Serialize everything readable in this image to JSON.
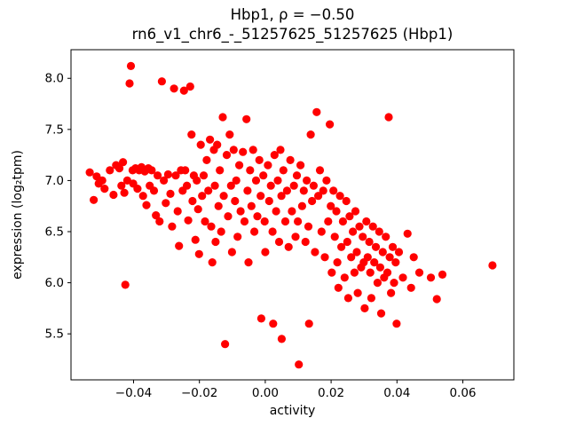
{
  "figure": {
    "title_line1": "Hbp1, ρ = −0.50",
    "title_line2": "rn6_v1_chr6_-_51257625_51257625 (Hbp1)",
    "xlabel": "activity",
    "ylabel": "expression (log₂tpm)"
  },
  "chart_data": {
    "type": "scatter",
    "title": "Hbp1, ρ = −0.50\nrn6_v1_chr6_-_51257625_51257625 (Hbp1)",
    "xlabel": "activity",
    "ylabel": "expression (log2 tpm)",
    "marker_color": "#ff0000",
    "correlation_rho": -0.5,
    "grid": false,
    "xlim": [
      -0.059,
      0.0755
    ],
    "ylim": [
      5.05,
      8.28
    ],
    "xticks": [
      -0.04,
      -0.02,
      0.0,
      0.02,
      0.04,
      0.06
    ],
    "xtick_labels": [
      "−0.04",
      "−0.02",
      "0.00",
      "0.02",
      "0.04",
      "0.06"
    ],
    "yticks": [
      5.5,
      6.0,
      6.5,
      7.0,
      7.5,
      8.0
    ],
    "ytick_labels": [
      "5.5",
      "6.0",
      "6.5",
      "7.0",
      "7.5",
      "8.0"
    ],
    "points": [
      [
        -0.0533,
        7.08
      ],
      [
        -0.0521,
        6.81
      ],
      [
        -0.0512,
        7.04
      ],
      [
        -0.0506,
        6.97
      ],
      [
        -0.0495,
        7.0
      ],
      [
        -0.0488,
        6.92
      ],
      [
        -0.0472,
        7.1
      ],
      [
        -0.0461,
        6.86
      ],
      [
        -0.0453,
        7.15
      ],
      [
        -0.0443,
        7.12
      ],
      [
        -0.0437,
        6.95
      ],
      [
        -0.0432,
        7.18
      ],
      [
        -0.0428,
        6.88
      ],
      [
        -0.0425,
        5.98
      ],
      [
        -0.0419,
        7.0
      ],
      [
        -0.0412,
        7.95
      ],
      [
        -0.0408,
        8.12
      ],
      [
        -0.0403,
        7.1
      ],
      [
        -0.0401,
        6.97
      ],
      [
        -0.0394,
        7.12
      ],
      [
        -0.0388,
        6.92
      ],
      [
        -0.0383,
        7.1
      ],
      [
        -0.0376,
        7.13
      ],
      [
        -0.0371,
        6.85
      ],
      [
        -0.0366,
        7.09
      ],
      [
        -0.0361,
        6.76
      ],
      [
        -0.0355,
        7.12
      ],
      [
        -0.0351,
        6.95
      ],
      [
        -0.0345,
        7.1
      ],
      [
        -0.0338,
        6.9
      ],
      [
        -0.0332,
        6.66
      ],
      [
        -0.0327,
        7.05
      ],
      [
        -0.0321,
        6.6
      ],
      [
        -0.0314,
        7.97
      ],
      [
        -0.0308,
        7.0
      ],
      [
        -0.0302,
        6.78
      ],
      [
        -0.0295,
        7.06
      ],
      [
        -0.0288,
        6.87
      ],
      [
        -0.0283,
        6.55
      ],
      [
        -0.0277,
        7.9
      ],
      [
        -0.0272,
        7.05
      ],
      [
        -0.0266,
        6.7
      ],
      [
        -0.0262,
        6.36
      ],
      [
        -0.0256,
        7.1
      ],
      [
        -0.0251,
        6.9
      ],
      [
        -0.0247,
        7.88
      ],
      [
        -0.0243,
        7.1
      ],
      [
        -0.0238,
        6.95
      ],
      [
        -0.0234,
        6.61
      ],
      [
        -0.0228,
        7.92
      ],
      [
        -0.0224,
        7.45
      ],
      [
        -0.0221,
        6.8
      ],
      [
        -0.0217,
        7.05
      ],
      [
        -0.0212,
        6.42
      ],
      [
        -0.0208,
        7.0
      ],
      [
        -0.0204,
        6.72
      ],
      [
        -0.0201,
        6.28
      ],
      [
        -0.0196,
        7.35
      ],
      [
        -0.0192,
        6.85
      ],
      [
        -0.0187,
        7.05
      ],
      [
        -0.0183,
        6.6
      ],
      [
        -0.0178,
        7.2
      ],
      [
        -0.0173,
        6.9
      ],
      [
        -0.0168,
        7.4
      ],
      [
        -0.0164,
        6.55
      ],
      [
        -0.0161,
        6.2
      ],
      [
        -0.0156,
        7.3
      ],
      [
        -0.0153,
        6.95
      ],
      [
        -0.0151,
        6.4
      ],
      [
        -0.0146,
        7.35
      ],
      [
        -0.0142,
        6.75
      ],
      [
        -0.0138,
        7.1
      ],
      [
        -0.0134,
        6.5
      ],
      [
        -0.0129,
        7.62
      ],
      [
        -0.0126,
        6.85
      ],
      [
        -0.0122,
        5.4
      ],
      [
        -0.0117,
        7.25
      ],
      [
        -0.0113,
        6.65
      ],
      [
        -0.0108,
        7.45
      ],
      [
        -0.0104,
        6.95
      ],
      [
        -0.0101,
        6.3
      ],
      [
        -0.0096,
        7.3
      ],
      [
        -0.0092,
        6.8
      ],
      [
        -0.0088,
        7.0
      ],
      [
        -0.0084,
        6.45
      ],
      [
        -0.0079,
        7.15
      ],
      [
        -0.0075,
        6.7
      ],
      [
        -0.0068,
        7.28
      ],
      [
        -0.0063,
        6.6
      ],
      [
        -0.0057,
        7.6
      ],
      [
        -0.0054,
        6.9
      ],
      [
        -0.0051,
        6.2
      ],
      [
        -0.0046,
        7.1
      ],
      [
        -0.0042,
        6.75
      ],
      [
        -0.0037,
        7.3
      ],
      [
        -0.0033,
        6.5
      ],
      [
        -0.0028,
        7.0
      ],
      [
        -0.0024,
        6.65
      ],
      [
        -0.0018,
        7.2
      ],
      [
        -0.0014,
        6.85
      ],
      [
        -0.0012,
        5.65
      ],
      [
        -0.0006,
        7.05
      ],
      [
        -0.0002,
        6.6
      ],
      [
        0.0,
        6.3
      ],
      [
        0.0008,
        7.15
      ],
      [
        0.0012,
        6.8
      ],
      [
        0.0017,
        6.95
      ],
      [
        0.0022,
        6.5
      ],
      [
        0.0024,
        5.6
      ],
      [
        0.0028,
        7.25
      ],
      [
        0.0033,
        6.7
      ],
      [
        0.0038,
        7.0
      ],
      [
        0.0042,
        6.4
      ],
      [
        0.0046,
        7.3
      ],
      [
        0.0049,
        6.85
      ],
      [
        0.005,
        5.45
      ],
      [
        0.0055,
        7.1
      ],
      [
        0.0061,
        6.6
      ],
      [
        0.0066,
        6.9
      ],
      [
        0.0071,
        6.35
      ],
      [
        0.0076,
        7.2
      ],
      [
        0.0081,
        6.7
      ],
      [
        0.0087,
        6.95
      ],
      [
        0.0092,
        6.45
      ],
      [
        0.0096,
        7.05
      ],
      [
        0.0099,
        6.6
      ],
      [
        0.0102,
        5.2
      ],
      [
        0.0107,
        7.15
      ],
      [
        0.0112,
        6.75
      ],
      [
        0.0117,
        6.9
      ],
      [
        0.0122,
        6.4
      ],
      [
        0.0126,
        7.0
      ],
      [
        0.0131,
        6.55
      ],
      [
        0.0133,
        5.6
      ],
      [
        0.0138,
        7.45
      ],
      [
        0.0142,
        6.8
      ],
      [
        0.0147,
        6.95
      ],
      [
        0.0151,
        6.3
      ],
      [
        0.0156,
        7.67
      ],
      [
        0.0161,
        6.85
      ],
      [
        0.0166,
        7.1
      ],
      [
        0.0171,
        6.5
      ],
      [
        0.0176,
        6.9
      ],
      [
        0.0181,
        6.25
      ],
      [
        0.0186,
        7.0
      ],
      [
        0.0191,
        6.6
      ],
      [
        0.0196,
        7.55
      ],
      [
        0.0199,
        6.75
      ],
      [
        0.0202,
        6.1
      ],
      [
        0.0207,
        6.9
      ],
      [
        0.0211,
        6.45
      ],
      [
        0.0216,
        6.7
      ],
      [
        0.0219,
        6.2
      ],
      [
        0.0222,
        5.95
      ],
      [
        0.0227,
        6.85
      ],
      [
        0.0231,
        6.35
      ],
      [
        0.0236,
        6.6
      ],
      [
        0.0241,
        6.05
      ],
      [
        0.0246,
        6.8
      ],
      [
        0.0249,
        6.4
      ],
      [
        0.0252,
        5.85
      ],
      [
        0.0256,
        6.65
      ],
      [
        0.0261,
        6.25
      ],
      [
        0.0266,
        6.5
      ],
      [
        0.0271,
        6.1
      ],
      [
        0.0274,
        6.7
      ],
      [
        0.0278,
        6.3
      ],
      [
        0.0281,
        5.9
      ],
      [
        0.0286,
        6.55
      ],
      [
        0.0291,
        6.15
      ],
      [
        0.0296,
        6.45
      ],
      [
        0.0299,
        6.2
      ],
      [
        0.0302,
        5.75
      ],
      [
        0.0307,
        6.6
      ],
      [
        0.0311,
        6.25
      ],
      [
        0.0316,
        6.4
      ],
      [
        0.0319,
        6.1
      ],
      [
        0.0322,
        5.85
      ],
      [
        0.0327,
        6.55
      ],
      [
        0.0331,
        6.2
      ],
      [
        0.0336,
        6.35
      ],
      [
        0.0341,
        6.0
      ],
      [
        0.0346,
        6.5
      ],
      [
        0.0349,
        6.15
      ],
      [
        0.0352,
        5.7
      ],
      [
        0.0357,
        6.3
      ],
      [
        0.0361,
        6.05
      ],
      [
        0.0366,
        6.45
      ],
      [
        0.0371,
        6.1
      ],
      [
        0.0375,
        7.62
      ],
      [
        0.0378,
        6.25
      ],
      [
        0.0382,
        5.9
      ],
      [
        0.0387,
        6.35
      ],
      [
        0.0391,
        6.0
      ],
      [
        0.0396,
        6.2
      ],
      [
        0.0399,
        5.6
      ],
      [
        0.0406,
        6.3
      ],
      [
        0.0418,
        6.05
      ],
      [
        0.0432,
        6.48
      ],
      [
        0.0443,
        5.95
      ],
      [
        0.0451,
        6.25
      ],
      [
        0.0468,
        6.1
      ],
      [
        0.0503,
        6.05
      ],
      [
        0.0521,
        5.84
      ],
      [
        0.0538,
        6.08
      ],
      [
        0.069,
        6.17
      ]
    ]
  }
}
